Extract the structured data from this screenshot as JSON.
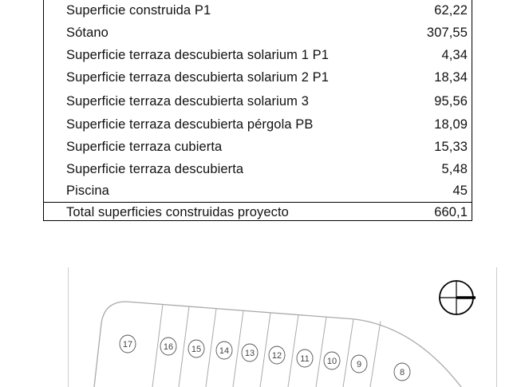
{
  "table": {
    "rows": [
      {
        "label": "Superficie construida P1",
        "value": "62,22"
      },
      {
        "label": "Sótano",
        "value": "307,55"
      },
      {
        "label": "Superficie terraza descubierta solarium 1 P1",
        "value": "4,34"
      },
      {
        "label": "Superficie terraza descubierta solarium 2 P1",
        "value": "18,34"
      },
      {
        "label": "Superficie terraza descubierta solarium 3",
        "value": "95,56"
      },
      {
        "label": "Superficie terraza descubierta pérgola PB",
        "value": "18,09"
      },
      {
        "label": "Superficie terraza cubierta",
        "value": "15,33"
      },
      {
        "label": "Superficie terraza descubierta",
        "value": "5,48"
      },
      {
        "label": "Piscina",
        "value": "45"
      }
    ],
    "total": {
      "label": "Total superficies construidas proyecto",
      "value": "660,1"
    }
  },
  "plan": {
    "plots": [
      "17",
      "16",
      "15",
      "14",
      "13",
      "12",
      "11",
      "10",
      "9",
      "8"
    ],
    "compass_icon": "north-arrow-compass"
  }
}
